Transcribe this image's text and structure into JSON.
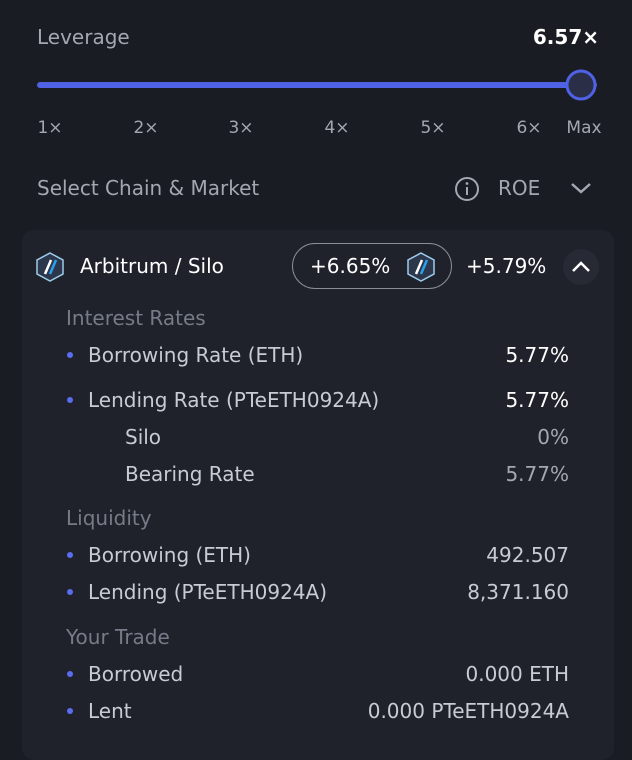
{
  "leverage": {
    "label": "Leverage",
    "value": "6.57×",
    "ticks": [
      "1×",
      "2×",
      "3×",
      "4×",
      "5×",
      "6×",
      "Max"
    ]
  },
  "selector": {
    "label": "Select Chain & Market",
    "metric": "ROE"
  },
  "market": {
    "name": "Arbitrum / Silo",
    "badge": "+6.65%",
    "roe": "+5.79%",
    "sections": [
      {
        "title": "Interest Rates",
        "rows": [
          {
            "label": "Borrowing Rate (ETH)",
            "value": "5.77%"
          },
          {
            "label": "Lending Rate (PTeETH0924A)",
            "value": "5.77%",
            "children": [
              {
                "label": "Silo",
                "value": "0%"
              },
              {
                "label": "Bearing Rate",
                "value": "5.77%"
              }
            ]
          }
        ]
      },
      {
        "title": "Liquidity",
        "rows": [
          {
            "label": "Borrowing (ETH)",
            "value": "492.507"
          },
          {
            "label": "Lending (PTeETH0924A)",
            "value": "8,371.160"
          }
        ]
      },
      {
        "title": "Your Trade",
        "rows": [
          {
            "label": "Borrowed",
            "value": "0.000 ETH"
          },
          {
            "label": "Lent",
            "value": "0.000 PTeETH0924A"
          }
        ]
      }
    ]
  }
}
